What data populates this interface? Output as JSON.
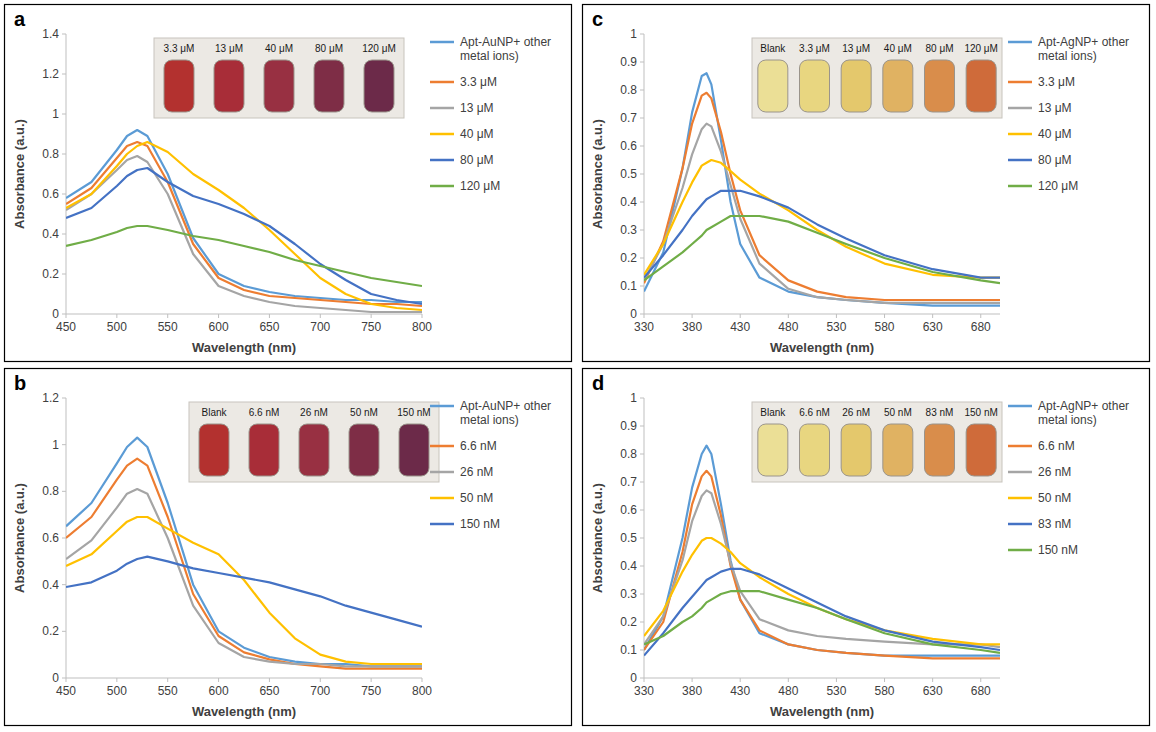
{
  "chart_data": [
    {
      "type": "line",
      "label": "a",
      "x_label": "Wavelength (nm)",
      "y_label": "Absorbance (a.u.)",
      "inset_labels": [
        "3.3 μM",
        "13 μM",
        "40 μM",
        "80 μM",
        "120 μM"
      ],
      "x": [
        450,
        475,
        500,
        510,
        520,
        530,
        550,
        575,
        600,
        625,
        650,
        675,
        700,
        725,
        750,
        775,
        800
      ],
      "xlim": [
        450,
        800
      ],
      "xticks": [
        450,
        500,
        550,
        600,
        650,
        700,
        750,
        800
      ],
      "ylim": [
        0,
        1.4
      ],
      "yticks": [
        0,
        0.2,
        0.4,
        0.6,
        0.8,
        1,
        1.2,
        1.4
      ],
      "grid": false,
      "legend": "right",
      "series": [
        {
          "name": "Apt-AuNP+ other metal ions)",
          "color": "#5b9bd5",
          "values": [
            0.58,
            0.66,
            0.82,
            0.89,
            0.92,
            0.89,
            0.7,
            0.38,
            0.2,
            0.14,
            0.11,
            0.09,
            0.08,
            0.07,
            0.07,
            0.06,
            0.06
          ]
        },
        {
          "name": "3.3 μM",
          "color": "#ed7d31",
          "values": [
            0.55,
            0.63,
            0.78,
            0.84,
            0.86,
            0.84,
            0.66,
            0.35,
            0.18,
            0.12,
            0.09,
            0.08,
            0.07,
            0.06,
            0.05,
            0.05,
            0.04
          ]
        },
        {
          "name": "13 μM",
          "color": "#a5a5a5",
          "values": [
            0.52,
            0.6,
            0.72,
            0.77,
            0.79,
            0.76,
            0.6,
            0.3,
            0.14,
            0.09,
            0.06,
            0.04,
            0.03,
            0.02,
            0.01,
            0.01,
            0.01
          ]
        },
        {
          "name": "40  μM",
          "color": "#ffc000",
          "values": [
            0.53,
            0.6,
            0.74,
            0.8,
            0.84,
            0.86,
            0.81,
            0.7,
            0.62,
            0.53,
            0.42,
            0.3,
            0.18,
            0.1,
            0.05,
            0.03,
            0.02
          ]
        },
        {
          "name": "80 μM",
          "color": "#4472c4",
          "values": [
            0.48,
            0.53,
            0.64,
            0.69,
            0.72,
            0.73,
            0.66,
            0.59,
            0.55,
            0.5,
            0.44,
            0.35,
            0.25,
            0.17,
            0.1,
            0.07,
            0.05
          ]
        },
        {
          "name": "120 μM",
          "color": "#70ad47",
          "values": [
            0.34,
            0.37,
            0.41,
            0.43,
            0.44,
            0.44,
            0.42,
            0.39,
            0.37,
            0.34,
            0.31,
            0.27,
            0.24,
            0.21,
            0.18,
            0.16,
            0.14
          ]
        }
      ]
    },
    {
      "type": "line",
      "label": "b",
      "x_label": "Wavelength (nm)",
      "y_label": "Absorbance (a.u.)",
      "inset_labels": [
        "Blank",
        "6.6 nM",
        "26 nM",
        "50 nM",
        "150 nM"
      ],
      "x": [
        450,
        475,
        500,
        510,
        520,
        530,
        550,
        575,
        600,
        625,
        650,
        675,
        700,
        725,
        750,
        775,
        800
      ],
      "xlim": [
        450,
        800
      ],
      "xticks": [
        450,
        500,
        550,
        600,
        650,
        700,
        750,
        800
      ],
      "ylim": [
        0,
        1.2
      ],
      "yticks": [
        0,
        0.2,
        0.4,
        0.6,
        0.8,
        1,
        1.2
      ],
      "grid": false,
      "legend": "right",
      "series": [
        {
          "name": "Apt-AuNP+ other metal ions)",
          "color": "#5b9bd5",
          "values": [
            0.65,
            0.75,
            0.92,
            0.99,
            1.03,
            0.99,
            0.75,
            0.4,
            0.2,
            0.13,
            0.09,
            0.07,
            0.06,
            0.06,
            0.05,
            0.05,
            0.05
          ]
        },
        {
          "name": "6.6 nM",
          "color": "#ed7d31",
          "values": [
            0.6,
            0.69,
            0.85,
            0.91,
            0.94,
            0.91,
            0.69,
            0.36,
            0.18,
            0.11,
            0.08,
            0.06,
            0.05,
            0.04,
            0.04,
            0.04,
            0.04
          ]
        },
        {
          "name": "26 nM",
          "color": "#a5a5a5",
          "values": [
            0.51,
            0.59,
            0.73,
            0.79,
            0.81,
            0.79,
            0.6,
            0.31,
            0.15,
            0.09,
            0.07,
            0.06,
            0.06,
            0.05,
            0.05,
            0.05,
            0.05
          ]
        },
        {
          "name": "50 nM",
          "color": "#ffc000",
          "values": [
            0.48,
            0.53,
            0.63,
            0.67,
            0.69,
            0.69,
            0.64,
            0.58,
            0.53,
            0.42,
            0.28,
            0.17,
            0.1,
            0.07,
            0.06,
            0.06,
            0.06
          ]
        },
        {
          "name": "150 nM",
          "color": "#4472c4",
          "values": [
            0.39,
            0.41,
            0.46,
            0.49,
            0.51,
            0.52,
            0.5,
            0.47,
            0.45,
            0.43,
            0.41,
            0.38,
            0.35,
            0.31,
            0.28,
            0.25,
            0.22
          ]
        }
      ]
    },
    {
      "type": "line",
      "label": "c",
      "x_label": "Wavelength (nm)",
      "y_label": "Absorbance (a.u.)",
      "inset_labels": [
        "Blank",
        "3.3 μM",
        "13 μM",
        "40 μM",
        "80 μM",
        "120 μM"
      ],
      "x": [
        330,
        350,
        370,
        380,
        390,
        395,
        400,
        410,
        420,
        430,
        450,
        480,
        510,
        540,
        580,
        630,
        680,
        700
      ],
      "xlim": [
        330,
        700
      ],
      "xticks": [
        330,
        380,
        430,
        480,
        530,
        580,
        630,
        680
      ],
      "ylim": [
        0,
        1
      ],
      "yticks": [
        0,
        0.1,
        0.2,
        0.3,
        0.4,
        0.5,
        0.6,
        0.7,
        0.8,
        0.9,
        1
      ],
      "grid": false,
      "legend": "right",
      "series": [
        {
          "name": "Apt-AgNP+ other metal ions)",
          "color": "#5b9bd5",
          "values": [
            0.08,
            0.22,
            0.52,
            0.72,
            0.85,
            0.86,
            0.82,
            0.62,
            0.4,
            0.25,
            0.13,
            0.08,
            0.06,
            0.05,
            0.04,
            0.03,
            0.03,
            0.03
          ]
        },
        {
          "name": "3.3 μM",
          "color": "#ed7d31",
          "values": [
            0.11,
            0.26,
            0.52,
            0.68,
            0.78,
            0.79,
            0.77,
            0.65,
            0.5,
            0.37,
            0.21,
            0.12,
            0.08,
            0.06,
            0.05,
            0.05,
            0.05,
            0.05
          ]
        },
        {
          "name": "13 μM",
          "color": "#a5a5a5",
          "values": [
            0.12,
            0.25,
            0.45,
            0.57,
            0.66,
            0.68,
            0.67,
            0.58,
            0.46,
            0.34,
            0.18,
            0.09,
            0.06,
            0.05,
            0.04,
            0.04,
            0.04,
            0.04
          ]
        },
        {
          "name": "40  μM",
          "color": "#ffc000",
          "values": [
            0.14,
            0.25,
            0.4,
            0.47,
            0.53,
            0.54,
            0.55,
            0.54,
            0.51,
            0.48,
            0.43,
            0.37,
            0.3,
            0.24,
            0.18,
            0.14,
            0.13,
            0.13
          ]
        },
        {
          "name": "80 μM",
          "color": "#4472c4",
          "values": [
            0.13,
            0.21,
            0.3,
            0.35,
            0.39,
            0.41,
            0.42,
            0.44,
            0.44,
            0.44,
            0.42,
            0.38,
            0.32,
            0.27,
            0.21,
            0.16,
            0.13,
            0.13
          ]
        },
        {
          "name": "120  μM",
          "color": "#70ad47",
          "values": [
            0.12,
            0.17,
            0.22,
            0.25,
            0.28,
            0.3,
            0.31,
            0.33,
            0.35,
            0.35,
            0.35,
            0.33,
            0.29,
            0.25,
            0.2,
            0.15,
            0.12,
            0.11
          ]
        }
      ]
    },
    {
      "type": "line",
      "label": "d",
      "x_label": "Wavelength (nm)",
      "y_label": "Absorbance (a.u.)",
      "inset_labels": [
        "Blank",
        "6.6 nM",
        "26 nM",
        "50 nM",
        "83 nM",
        "150 nM"
      ],
      "x": [
        330,
        350,
        370,
        380,
        390,
        395,
        400,
        410,
        420,
        430,
        450,
        480,
        510,
        540,
        580,
        630,
        680,
        700
      ],
      "xlim": [
        330,
        700
      ],
      "xticks": [
        330,
        380,
        430,
        480,
        530,
        580,
        630,
        680
      ],
      "ylim": [
        0,
        1
      ],
      "yticks": [
        0,
        0.1,
        0.2,
        0.3,
        0.4,
        0.5,
        0.6,
        0.7,
        0.8,
        0.9,
        1
      ],
      "grid": false,
      "legend": "right",
      "series": [
        {
          "name": "Apt-AgNP+ other metal ions)",
          "color": "#5b9bd5",
          "values": [
            0.1,
            0.22,
            0.5,
            0.68,
            0.8,
            0.83,
            0.8,
            0.62,
            0.42,
            0.28,
            0.16,
            0.12,
            0.1,
            0.09,
            0.08,
            0.08,
            0.08,
            0.08
          ]
        },
        {
          "name": "6.6 nM",
          "color": "#ed7d31",
          "values": [
            0.1,
            0.2,
            0.45,
            0.62,
            0.72,
            0.74,
            0.72,
            0.58,
            0.4,
            0.28,
            0.17,
            0.12,
            0.1,
            0.09,
            0.08,
            0.07,
            0.07,
            0.07
          ]
        },
        {
          "name": "26 nM",
          "color": "#a5a5a5",
          "values": [
            0.12,
            0.22,
            0.42,
            0.56,
            0.65,
            0.67,
            0.66,
            0.55,
            0.41,
            0.31,
            0.21,
            0.17,
            0.15,
            0.14,
            0.13,
            0.12,
            0.12,
            0.11
          ]
        },
        {
          "name": "50 nM",
          "color": "#ffc000",
          "values": [
            0.15,
            0.24,
            0.38,
            0.44,
            0.49,
            0.5,
            0.5,
            0.48,
            0.45,
            0.41,
            0.36,
            0.3,
            0.25,
            0.21,
            0.17,
            0.14,
            0.12,
            0.12
          ]
        },
        {
          "name": "83 nM",
          "color": "#4472c4",
          "values": [
            0.08,
            0.16,
            0.25,
            0.29,
            0.33,
            0.35,
            0.36,
            0.38,
            0.39,
            0.39,
            0.37,
            0.32,
            0.27,
            0.22,
            0.17,
            0.13,
            0.11,
            0.1
          ]
        },
        {
          "name": "150 nM",
          "color": "#70ad47",
          "values": [
            0.12,
            0.15,
            0.2,
            0.22,
            0.25,
            0.27,
            0.28,
            0.3,
            0.31,
            0.31,
            0.31,
            0.28,
            0.25,
            0.21,
            0.16,
            0.12,
            0.1,
            0.09
          ]
        }
      ]
    }
  ]
}
